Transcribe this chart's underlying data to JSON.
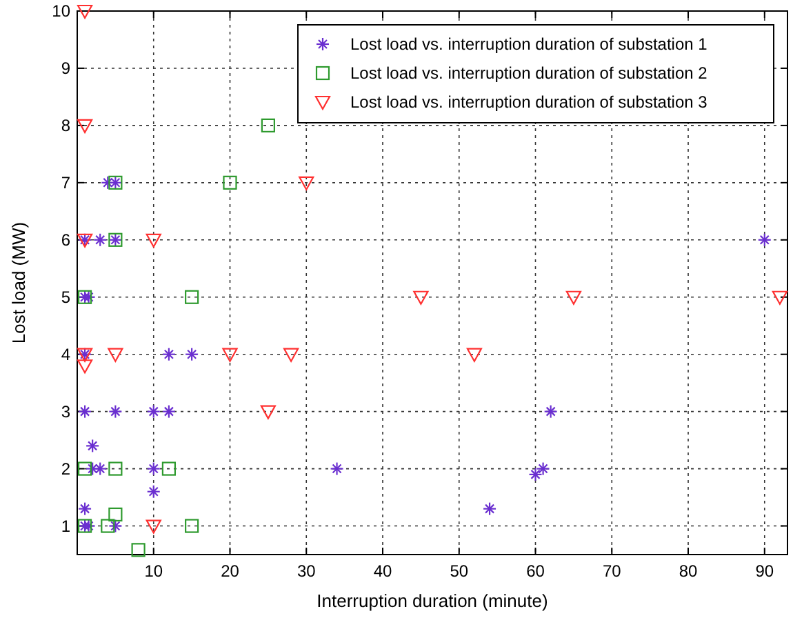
{
  "chart_data": {
    "type": "scatter",
    "xlabel": "Interruption duration (minute)",
    "ylabel": "Lost load (MW)",
    "xlim": [
      0,
      93
    ],
    "ylim": [
      0.5,
      10
    ],
    "xticks": [
      10,
      20,
      30,
      40,
      50,
      60,
      70,
      80,
      90
    ],
    "yticks": [
      1,
      2,
      3,
      4,
      5,
      6,
      7,
      8,
      9,
      10
    ],
    "grid": true,
    "legend": "top right",
    "series": [
      {
        "name": "Lost load vs. interruption duration of substation 1",
        "color": "#6a2fd0",
        "marker": "cross",
        "x": [
          4,
          5,
          1,
          3,
          5,
          1,
          1.5,
          1,
          12,
          15,
          1,
          5,
          10,
          12,
          2,
          2,
          3,
          10,
          10,
          1,
          1,
          1.5,
          5,
          34,
          54,
          90,
          60,
          61,
          62
        ],
        "values": [
          7,
          7,
          6,
          6,
          6,
          5,
          5,
          4,
          4,
          4,
          3,
          3,
          3,
          3,
          2.4,
          2,
          2,
          2,
          1.6,
          1.3,
          1,
          1,
          1,
          2,
          1.3,
          6,
          1.9,
          2,
          3
        ]
      },
      {
        "name": "Lost load vs. interruption duration of substation 2",
        "color": "#2e9a2e",
        "marker": "square",
        "x": [
          1,
          5,
          5,
          1,
          5,
          1,
          4,
          5,
          8,
          12,
          15,
          15,
          20,
          25
        ],
        "values": [
          5,
          7,
          6,
          2,
          2,
          1,
          1,
          1.2,
          0.58,
          2,
          1,
          5,
          7,
          8
        ]
      },
      {
        "name": "Lost load vs. interruption duration of substation 3",
        "color": "#ff3030",
        "marker": "triangle",
        "x": [
          1,
          1,
          1,
          10,
          1,
          5,
          1,
          10,
          20,
          25,
          28,
          30,
          45,
          52,
          65,
          92
        ],
        "values": [
          10,
          8,
          6,
          6,
          4,
          4,
          3.8,
          1,
          4,
          3,
          4,
          7,
          5,
          4,
          5,
          5
        ]
      }
    ]
  }
}
